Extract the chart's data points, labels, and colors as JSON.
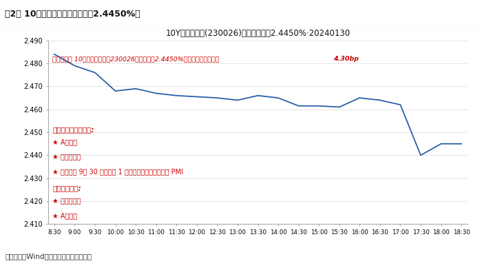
{
  "title": "10Y国市活跃券(230026)到期收益率为2.4450%·20240130",
  "figure_label": "图2： 10年期国市活跃券收益率（2.4450%）",
  "source_text": "数据来源：Wind，广发证券发展研究中心",
  "current_info_part1": "当日行情： 10年国市活跃券（230026）收益率为2.4450%，较前一交易日下行",
  "current_info_part2": "4.30bp",
  "next_day_title": "下一交易日主要关注:",
  "next_day_items": [
    "★ A股走势",
    "★ 资金面情况",
    "★ 明天上午 9点 30 分将发布 1 月官方制造业和非制造业 PMI"
  ],
  "rate_down_title": "利率下行因素:",
  "rate_down_items": [
    "★ 资金面宽松",
    "★ A股下跌"
  ],
  "x_labels": [
    "8:30",
    "9:00",
    "9:30",
    "10:00",
    "10:30",
    "11:00",
    "11:30",
    "12:00",
    "12:30",
    "13:00",
    "13:30",
    "14:00",
    "14:30",
    "15:00",
    "15:30",
    "16:00",
    "16:30",
    "17:00",
    "17:30",
    "18:00",
    "18:30"
  ],
  "y_values": [
    2.484,
    2.479,
    2.476,
    2.468,
    2.469,
    2.467,
    2.466,
    2.4655,
    2.465,
    2.464,
    2.466,
    2.465,
    2.4615,
    2.4615,
    2.461,
    2.465,
    2.464,
    2.462,
    2.44,
    2.445,
    2.445
  ],
  "ylim": [
    2.41,
    2.49
  ],
  "yticks": [
    2.41,
    2.42,
    2.43,
    2.44,
    2.45,
    2.46,
    2.47,
    2.48,
    2.49
  ],
  "line_color": "#2960a8",
  "bg_color": "#ffffff",
  "red_color": "#cc0000",
  "gray_header_bg": "#e0e0e0",
  "header_line_color": "#888888",
  "bottom_line_color": "#888888"
}
